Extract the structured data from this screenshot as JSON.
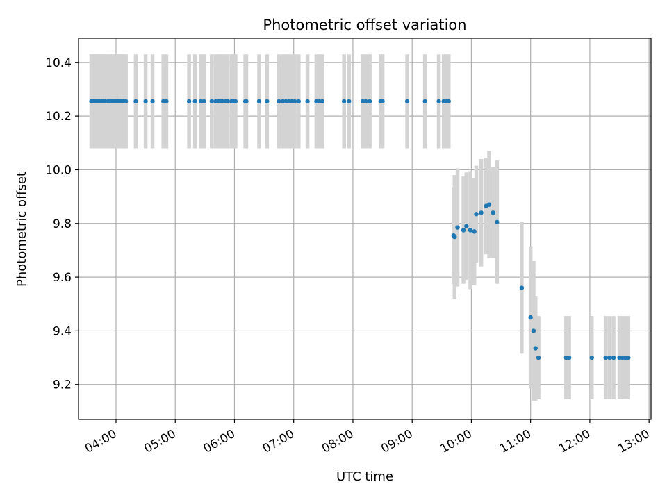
{
  "chart_data": {
    "type": "scatter",
    "title": "Photometric offset variation",
    "xlabel": "UTC time",
    "ylabel": "Photometric offset",
    "x_unit": "hours (UTC)",
    "xlim": [
      "03:22",
      "13:02"
    ],
    "ylim": [
      9.07,
      10.49
    ],
    "x_ticks": [
      {
        "value": "04:00",
        "label": "04:00"
      },
      {
        "value": "05:00",
        "label": "05:00"
      },
      {
        "value": "06:00",
        "label": "06:00"
      },
      {
        "value": "07:00",
        "label": "07:00"
      },
      {
        "value": "08:00",
        "label": "08:00"
      },
      {
        "value": "09:00",
        "label": "09:00"
      },
      {
        "value": "10:00",
        "label": "10:00"
      },
      {
        "value": "11:00",
        "label": "11:00"
      },
      {
        "value": "12:00",
        "label": "12:00"
      },
      {
        "value": "13:00",
        "label": "13:00"
      }
    ],
    "y_ticks": [
      {
        "value": 9.2,
        "label": "9.2"
      },
      {
        "value": 9.4,
        "label": "9.4"
      },
      {
        "value": 9.6,
        "label": "9.6"
      },
      {
        "value": 9.8,
        "label": "9.8"
      },
      {
        "value": 10.0,
        "label": "10.0"
      },
      {
        "value": 10.2,
        "label": "10.2"
      },
      {
        "value": 10.4,
        "label": "10.4"
      }
    ],
    "grid": true,
    "colors": {
      "marker": "#1f77b4",
      "errorbar": "#d3d3d3",
      "grid": "#b0b0b0",
      "axes": "#000000"
    },
    "series": [
      {
        "x": [
          "03:35",
          "03:37",
          "03:39",
          "03:41",
          "03:43",
          "03:45",
          "03:47",
          "03:49",
          "03:52",
          "03:54",
          "03:56",
          "03:58",
          "04:00",
          "04:02",
          "04:04",
          "04:06",
          "04:08",
          "04:10",
          "04:20",
          "04:30",
          "04:37",
          "04:48",
          "04:51",
          "05:14",
          "05:20",
          "05:26",
          "05:29",
          "05:37",
          "05:41",
          "05:44",
          "05:46",
          "05:48",
          "05:51",
          "05:53",
          "05:57",
          "05:59",
          "06:01",
          "06:11",
          "06:12",
          "06:25",
          "06:33",
          "06:45",
          "06:49",
          "06:52",
          "06:55",
          "06:58",
          "07:01",
          "07:05",
          "07:14",
          "07:23",
          "07:26",
          "07:29",
          "07:51",
          "07:56",
          "08:10",
          "08:13",
          "08:17",
          "08:28",
          "08:30",
          "08:55",
          "09:13",
          "09:27",
          "09:32",
          "09:35",
          "09:37"
        ],
        "y": [
          10.255,
          10.255,
          10.255,
          10.255,
          10.255,
          10.255,
          10.255,
          10.255,
          10.255,
          10.255,
          10.255,
          10.255,
          10.255,
          10.255,
          10.255,
          10.255,
          10.255,
          10.255,
          10.255,
          10.255,
          10.255,
          10.255,
          10.255,
          10.255,
          10.255,
          10.255,
          10.255,
          10.255,
          10.255,
          10.255,
          10.255,
          10.255,
          10.255,
          10.255,
          10.255,
          10.255,
          10.255,
          10.255,
          10.255,
          10.255,
          10.255,
          10.255,
          10.255,
          10.255,
          10.255,
          10.255,
          10.255,
          10.255,
          10.255,
          10.255,
          10.255,
          10.255,
          10.255,
          10.255,
          10.255,
          10.255,
          10.255,
          10.255,
          10.255,
          10.255,
          10.255,
          10.255,
          10.255,
          10.255,
          10.255
        ],
        "yerr": [
          0.175,
          0.175,
          0.175,
          0.175,
          0.175,
          0.175,
          0.175,
          0.175,
          0.175,
          0.175,
          0.175,
          0.175,
          0.175,
          0.175,
          0.175,
          0.175,
          0.175,
          0.175,
          0.175,
          0.175,
          0.175,
          0.175,
          0.175,
          0.175,
          0.175,
          0.175,
          0.175,
          0.175,
          0.175,
          0.175,
          0.175,
          0.175,
          0.175,
          0.175,
          0.175,
          0.175,
          0.175,
          0.175,
          0.175,
          0.175,
          0.175,
          0.175,
          0.175,
          0.175,
          0.175,
          0.175,
          0.175,
          0.175,
          0.175,
          0.175,
          0.175,
          0.175,
          0.175,
          0.175,
          0.175,
          0.175,
          0.175,
          0.175,
          0.175,
          0.175,
          0.175,
          0.175,
          0.175,
          0.175,
          0.175
        ]
      },
      {
        "x": [
          "09:42",
          "09:43",
          "09:46",
          "09:52",
          "09:55",
          "09:59",
          "10:03",
          "10:05",
          "10:10",
          "10:15",
          "10:18",
          "10:22",
          "10:26"
        ],
        "y": [
          9.755,
          9.75,
          9.785,
          9.775,
          9.79,
          9.775,
          9.77,
          9.835,
          9.84,
          9.865,
          9.87,
          9.84,
          9.805
        ],
        "yerr": [
          0.18,
          0.23,
          0.22,
          0.2,
          0.2,
          0.22,
          0.2,
          0.18,
          0.2,
          0.18,
          0.2,
          0.17,
          0.23
        ]
      },
      {
        "x": [
          "10:51",
          "11:00",
          "11:03",
          "11:05",
          "11:08"
        ],
        "y": [
          9.56,
          9.45,
          9.4,
          9.335,
          9.3
        ],
        "yerr": [
          0.245,
          0.265,
          0.26,
          0.195,
          0.155
        ]
      },
      {
        "x": [
          "11:36",
          "11:39",
          "12:02",
          "12:16",
          "12:20",
          "12:24",
          "12:30",
          "12:33",
          "12:36",
          "12:39"
        ],
        "y": [
          9.3,
          9.3,
          9.3,
          9.3,
          9.3,
          9.3,
          9.3,
          9.3,
          9.3,
          9.3
        ],
        "yerr": [
          0.155,
          0.155,
          0.155,
          0.155,
          0.155,
          0.155,
          0.155,
          0.155,
          0.155,
          0.155
        ]
      }
    ]
  }
}
